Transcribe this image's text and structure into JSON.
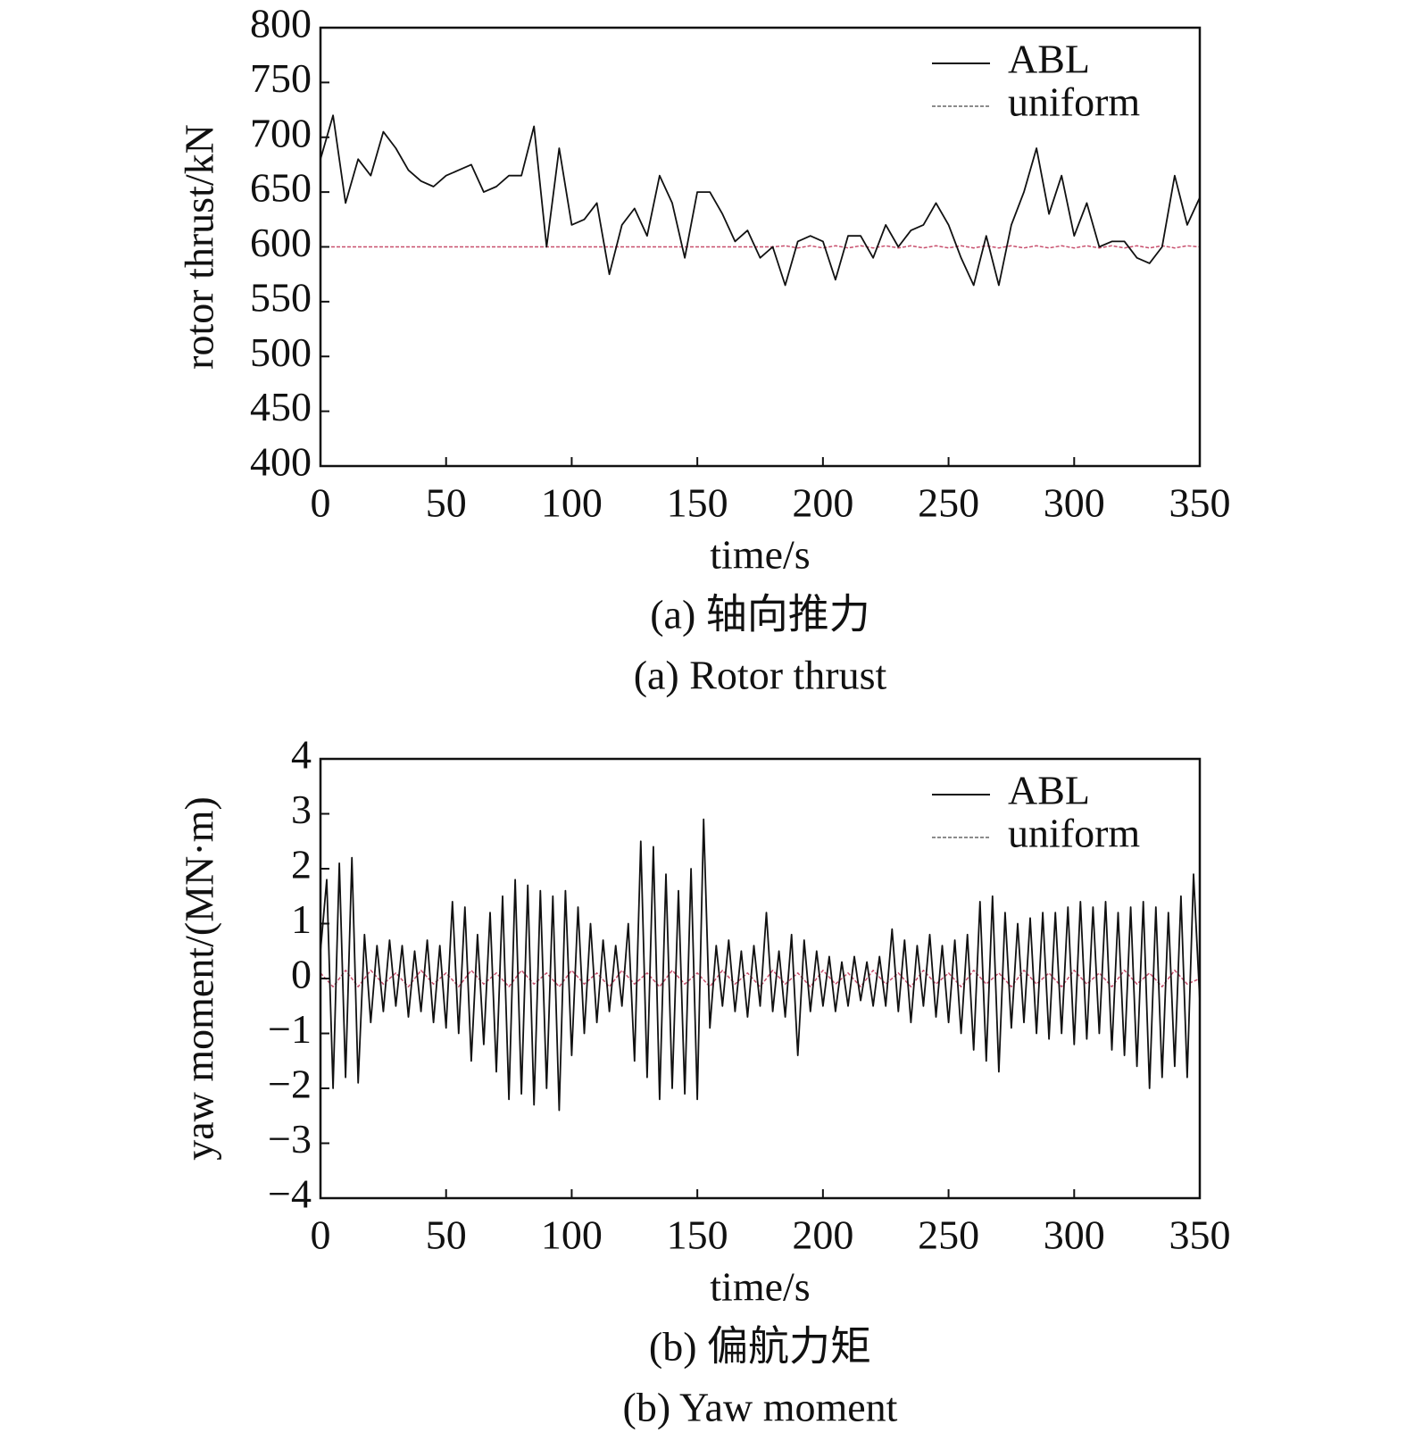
{
  "chart_data": [
    {
      "type": "line",
      "title": "(a) 轴向推力",
      "subtitle": "(a) Rotor thrust",
      "x_label": "time/s",
      "y_label": "rotor thrust/kN",
      "xlim": [
        0,
        350
      ],
      "ylim": [
        400,
        800
      ],
      "xticks": [
        0,
        50,
        100,
        150,
        200,
        250,
        300,
        350
      ],
      "yticks": [
        400,
        450,
        500,
        550,
        600,
        650,
        700,
        750,
        800
      ],
      "legend": "upper right",
      "series": [
        {
          "name": "ABL",
          "color": "#111111",
          "dash": false,
          "x": [
            0,
            5,
            10,
            15,
            20,
            25,
            30,
            35,
            40,
            45,
            50,
            55,
            60,
            65,
            70,
            75,
            80,
            85,
            90,
            95,
            100,
            105,
            110,
            115,
            120,
            125,
            130,
            135,
            140,
            145,
            150,
            155,
            160,
            165,
            170,
            175,
            180,
            185,
            190,
            195,
            200,
            205,
            210,
            215,
            220,
            225,
            230,
            235,
            240,
            245,
            250,
            255,
            260,
            265,
            270,
            275,
            280,
            285,
            290,
            295,
            300,
            305,
            310,
            315,
            320,
            325,
            330,
            335,
            340,
            345,
            350
          ],
          "values": [
            680,
            720,
            640,
            680,
            665,
            705,
            690,
            670,
            660,
            655,
            665,
            670,
            675,
            650,
            655,
            665,
            665,
            710,
            600,
            690,
            620,
            625,
            640,
            575,
            620,
            635,
            610,
            665,
            640,
            590,
            650,
            650,
            630,
            605,
            615,
            590,
            600,
            565,
            605,
            610,
            605,
            570,
            610,
            610,
            590,
            620,
            600,
            615,
            620,
            640,
            620,
            590,
            565,
            610,
            565,
            620,
            650,
            690,
            630,
            665,
            610,
            640,
            600,
            605,
            605,
            590,
            585,
            600,
            665,
            620,
            645
          ]
        },
        {
          "name": "uniform",
          "color": "#c8506e",
          "dash": true,
          "x": [
            0,
            5,
            10,
            15,
            20,
            25,
            30,
            35,
            40,
            45,
            50,
            55,
            60,
            65,
            70,
            75,
            80,
            85,
            90,
            95,
            100,
            105,
            110,
            115,
            120,
            125,
            130,
            135,
            140,
            145,
            150,
            155,
            160,
            165,
            170,
            175,
            180,
            185,
            190,
            195,
            200,
            205,
            210,
            215,
            220,
            225,
            230,
            235,
            240,
            245,
            250,
            255,
            260,
            265,
            270,
            275,
            280,
            285,
            290,
            295,
            300,
            305,
            310,
            315,
            320,
            325,
            330,
            335,
            340,
            345,
            350
          ],
          "values": [
            600,
            600,
            600,
            600,
            600,
            600,
            600,
            600,
            600,
            600,
            600,
            600,
            600,
            600,
            600,
            600,
            600,
            600,
            600,
            600,
            600,
            600,
            600,
            600,
            600,
            600,
            600,
            600,
            600,
            600,
            600,
            600,
            600,
            600,
            600,
            600,
            600,
            601,
            599,
            601,
            599,
            601,
            599,
            601,
            599,
            601,
            599,
            601,
            599,
            601,
            599,
            601,
            599,
            601,
            599,
            601,
            599,
            601,
            599,
            601,
            599,
            601,
            599,
            601,
            599,
            601,
            599,
            601,
            599,
            601,
            600
          ]
        }
      ]
    },
    {
      "type": "line",
      "title": "(b) 偏航力矩",
      "subtitle": "(b) Yaw moment",
      "x_label": "time/s",
      "y_label": "yaw moment/(MN·m)",
      "xlim": [
        0,
        350
      ],
      "ylim": [
        -4,
        4
      ],
      "xticks": [
        0,
        50,
        100,
        150,
        200,
        250,
        300,
        350
      ],
      "yticks": [
        {
          "value": -4,
          "label": "−4"
        },
        {
          "value": -3,
          "label": "−3"
        },
        {
          "value": -2,
          "label": "−2"
        },
        {
          "value": -1,
          "label": "−1"
        },
        0,
        1,
        2,
        3,
        4
      ],
      "legend": "upper right",
      "series": [
        {
          "name": "ABL",
          "color": "#111111",
          "dash": false,
          "x": [
            0,
            2.5,
            5,
            7.5,
            10,
            12.5,
            15,
            17.5,
            20,
            22.5,
            25,
            27.5,
            30,
            32.5,
            35,
            37.5,
            40,
            42.5,
            45,
            47.5,
            50,
            52.5,
            55,
            57.5,
            60,
            62.5,
            65,
            67.5,
            70,
            72.5,
            75,
            77.5,
            80,
            82.5,
            85,
            87.5,
            90,
            92.5,
            95,
            97.5,
            100,
            102.5,
            105,
            107.5,
            110,
            112.5,
            115,
            117.5,
            120,
            122.5,
            125,
            127.5,
            130,
            132.5,
            135,
            137.5,
            140,
            142.5,
            145,
            147.5,
            150,
            152.5,
            155,
            157.5,
            160,
            162.5,
            165,
            167.5,
            170,
            172.5,
            175,
            177.5,
            180,
            182.5,
            185,
            187.5,
            190,
            192.5,
            195,
            197.5,
            200,
            202.5,
            205,
            207.5,
            210,
            212.5,
            215,
            217.5,
            220,
            222.5,
            225,
            227.5,
            230,
            232.5,
            235,
            237.5,
            240,
            242.5,
            245,
            247.5,
            250,
            252.5,
            255,
            257.5,
            260,
            262.5,
            265,
            267.5,
            270,
            272.5,
            275,
            277.5,
            280,
            282.5,
            285,
            287.5,
            290,
            292.5,
            295,
            297.5,
            300,
            302.5,
            305,
            307.5,
            310,
            312.5,
            315,
            317.5,
            320,
            322.5,
            325,
            327.5,
            330,
            332.5,
            335,
            337.5,
            340,
            342.5,
            345,
            347.5,
            350
          ],
          "values": [
            0.5,
            1.8,
            -2.0,
            2.1,
            -1.8,
            2.2,
            -1.9,
            0.8,
            -0.8,
            0.6,
            -0.6,
            0.7,
            -0.5,
            0.6,
            -0.7,
            0.5,
            -0.6,
            0.7,
            -0.8,
            0.6,
            -0.9,
            1.4,
            -1.0,
            1.3,
            -1.5,
            0.8,
            -1.2,
            1.2,
            -1.7,
            1.5,
            -2.2,
            1.8,
            -2.1,
            1.7,
            -2.3,
            1.6,
            -2.0,
            1.5,
            -2.4,
            1.6,
            -1.4,
            1.3,
            -1.0,
            1.0,
            -0.8,
            0.7,
            -0.6,
            0.6,
            -0.5,
            1.0,
            -1.5,
            2.5,
            -1.8,
            2.4,
            -2.2,
            1.9,
            -2.0,
            1.6,
            -2.1,
            2.0,
            -2.2,
            2.9,
            -0.9,
            0.6,
            -0.5,
            0.7,
            -0.6,
            0.5,
            -0.7,
            0.6,
            -0.5,
            1.2,
            -0.6,
            0.5,
            -0.7,
            0.8,
            -1.4,
            0.7,
            -0.6,
            0.5,
            -0.5,
            0.4,
            -0.6,
            0.3,
            -0.5,
            0.4,
            -0.4,
            0.3,
            -0.5,
            0.4,
            -0.5,
            0.9,
            -0.6,
            0.7,
            -0.8,
            0.6,
            -0.5,
            0.8,
            -0.7,
            0.6,
            -0.8,
            0.7,
            -1.0,
            0.8,
            -1.3,
            1.4,
            -1.5,
            1.5,
            -1.7,
            1.2,
            -0.9,
            1.0,
            -0.8,
            1.1,
            -1.0,
            1.2,
            -1.1,
            1.2,
            -1.0,
            1.3,
            -1.2,
            1.4,
            -1.1,
            1.3,
            -1.0,
            1.4,
            -1.3,
            1.2,
            -1.4,
            1.3,
            -1.6,
            1.4,
            -2.0,
            1.3,
            -1.8,
            1.2,
            -1.6,
            1.5,
            -1.8,
            1.9,
            -0.4
          ]
        },
        {
          "name": "uniform",
          "color": "#c8506e",
          "dash": true,
          "x": [
            0,
            5,
            10,
            15,
            20,
            25,
            30,
            35,
            40,
            45,
            50,
            55,
            60,
            65,
            70,
            75,
            80,
            85,
            90,
            95,
            100,
            105,
            110,
            115,
            120,
            125,
            130,
            135,
            140,
            145,
            150,
            155,
            160,
            165,
            170,
            175,
            180,
            185,
            190,
            195,
            200,
            205,
            210,
            215,
            220,
            225,
            230,
            235,
            240,
            245,
            250,
            255,
            260,
            265,
            270,
            275,
            280,
            285,
            290,
            295,
            300,
            305,
            310,
            315,
            320,
            325,
            330,
            335,
            340,
            345,
            350
          ],
          "values": [
            0.1,
            -0.15,
            0.15,
            -0.15,
            0.15,
            -0.1,
            0.1,
            -0.15,
            0.15,
            -0.1,
            0.1,
            -0.15,
            0.15,
            -0.1,
            0.1,
            -0.15,
            0.15,
            -0.1,
            0.1,
            -0.15,
            0.15,
            -0.1,
            0.1,
            -0.15,
            0.15,
            -0.1,
            0.1,
            -0.15,
            0.15,
            -0.1,
            0.1,
            -0.15,
            0.15,
            -0.1,
            0.1,
            -0.15,
            0.15,
            -0.1,
            0.1,
            -0.15,
            0.15,
            -0.1,
            0.1,
            -0.15,
            0.15,
            -0.1,
            0.1,
            -0.15,
            0.15,
            -0.1,
            0.1,
            -0.15,
            0.15,
            -0.1,
            0.1,
            -0.15,
            0.15,
            -0.1,
            0.1,
            -0.15,
            0.15,
            -0.1,
            0.1,
            -0.15,
            0.15,
            -0.1,
            0.1,
            -0.15,
            0.15,
            -0.1,
            0.0
          ]
        }
      ]
    }
  ]
}
